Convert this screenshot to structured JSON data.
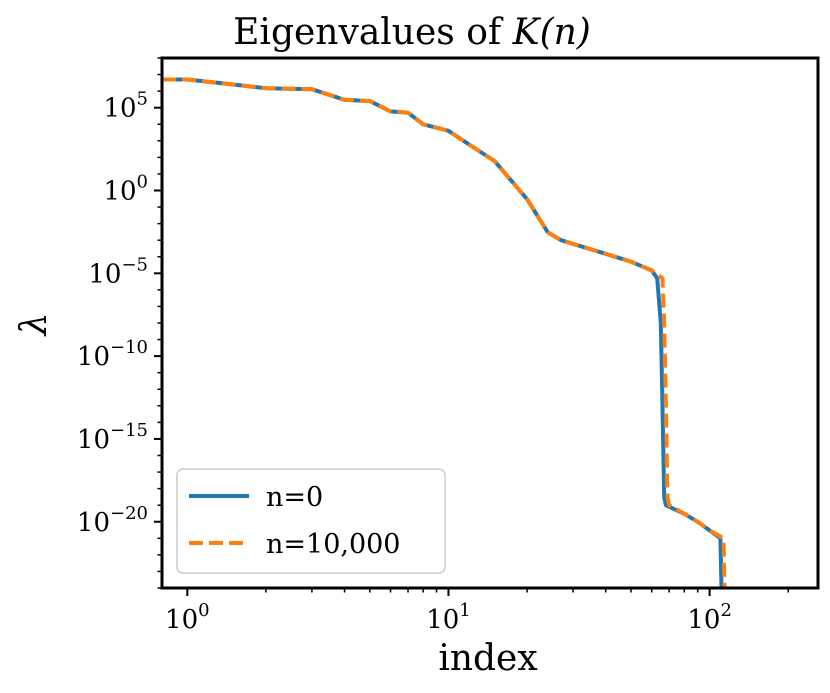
{
  "chart_data": {
    "type": "line",
    "title": "Eigenvalues of",
    "title_math": "K(n)",
    "xlabel": "index",
    "ylabel": "λ",
    "xscale": "log",
    "yscale": "log",
    "xlim": [
      0.8,
      260
    ],
    "ylim": [
      1e-24,
      100000000.0
    ],
    "x_ticks": [
      {
        "base": "10",
        "exp": "0",
        "value": 1
      },
      {
        "base": "10",
        "exp": "1",
        "value": 10
      },
      {
        "base": "10",
        "exp": "2",
        "value": 100
      }
    ],
    "y_ticks": [
      {
        "base": "10",
        "exp": "5",
        "value": 100000.0
      },
      {
        "base": "10",
        "exp": "0",
        "value": 1
      },
      {
        "base": "10",
        "exp": "−5",
        "value": 1e-05
      },
      {
        "base": "10",
        "exp": "−10",
        "value": 1e-10
      },
      {
        "base": "10",
        "exp": "−15",
        "value": 1e-15
      },
      {
        "base": "10",
        "exp": "−20",
        "value": 1e-20
      }
    ],
    "legend_position": "lower-left",
    "series": [
      {
        "name": "n=0",
        "color": "#1f77b4",
        "style": "solid",
        "points": [
          [
            0.8,
            5000000.0
          ],
          [
            1,
            5000000.0
          ],
          [
            1.5,
            2500000.0
          ],
          [
            2,
            1500000.0
          ],
          [
            3,
            1300000.0
          ],
          [
            4,
            300000.0
          ],
          [
            5,
            250000.0
          ],
          [
            6,
            60000.0
          ],
          [
            7,
            50000.0
          ],
          [
            8,
            10000.0
          ],
          [
            10,
            4000.0
          ],
          [
            12,
            600.0
          ],
          [
            15,
            60.0
          ],
          [
            20,
            0.3
          ],
          [
            24,
            0.003
          ],
          [
            27,
            0.001
          ],
          [
            30,
            0.0006
          ],
          [
            40,
            0.00015
          ],
          [
            50,
            5e-05
          ],
          [
            60,
            1.5e-05
          ],
          [
            63,
            5e-06
          ],
          [
            65,
            1e-08
          ],
          [
            66,
            1e-13
          ],
          [
            67,
            3e-19
          ],
          [
            68,
            1e-19
          ],
          [
            80,
            3e-20
          ],
          [
            90,
            1e-20
          ],
          [
            100,
            3e-21
          ],
          [
            110,
            1e-21
          ],
          [
            111,
            1e-24
          ]
        ]
      },
      {
        "name": "n=10,000",
        "color": "#ff7f0e",
        "style": "dashed",
        "points": [
          [
            0.8,
            5000000.0
          ],
          [
            1,
            5000000.0
          ],
          [
            1.5,
            2500000.0
          ],
          [
            2,
            1500000.0
          ],
          [
            3,
            1300000.0
          ],
          [
            4,
            300000.0
          ],
          [
            5,
            250000.0
          ],
          [
            6,
            60000.0
          ],
          [
            7,
            50000.0
          ],
          [
            8,
            10000.0
          ],
          [
            10,
            4000.0
          ],
          [
            12,
            600.0
          ],
          [
            15,
            60.0
          ],
          [
            20,
            0.3
          ],
          [
            24,
            0.003
          ],
          [
            27,
            0.001
          ],
          [
            30,
            0.0006
          ],
          [
            40,
            0.00015
          ],
          [
            50,
            5e-05
          ],
          [
            60,
            1.5e-05
          ],
          [
            66,
            5e-06
          ],
          [
            67,
            1e-08
          ],
          [
            68,
            1e-13
          ],
          [
            69,
            3e-19
          ],
          [
            70,
            1e-19
          ],
          [
            80,
            3e-20
          ],
          [
            90,
            1e-20
          ],
          [
            100,
            3e-21
          ],
          [
            113,
            1e-21
          ],
          [
            114,
            1e-24
          ]
        ]
      }
    ]
  }
}
